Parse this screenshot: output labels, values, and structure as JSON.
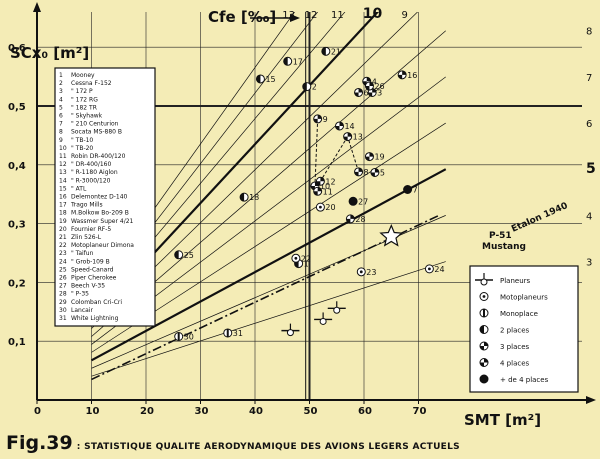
{
  "caption": {
    "figure": "Fig.39",
    "text": ": STATISTIQUE QUALITE AERODYNAMIQUE DES AVIONS LEGERS ACTUELS"
  },
  "chart_data": {
    "type": "scatter",
    "xlabel": "SMT [m²]",
    "ylabel": "SCx₀ [m²]",
    "toplabel": "Cfe [‰]",
    "xlim": [
      0,
      75
    ],
    "ylim": [
      0,
      0.65
    ],
    "x_ticks": [
      0,
      10,
      20,
      30,
      40,
      50,
      60,
      70
    ],
    "y_ticks": [
      0.1,
      0.2,
      0.3,
      0.4,
      0.5,
      0.6
    ],
    "y_tick_labels": [
      "0,1",
      "0,2",
      "0,3",
      "0,4",
      "0,5",
      "0,6"
    ],
    "cfe_lines": [
      {
        "cfe": 3,
        "label": "3"
      },
      {
        "cfe": 4,
        "label": "4"
      },
      {
        "cfe": 5,
        "label": "5",
        "bold": true
      },
      {
        "cfe": 6,
        "label": "6"
      },
      {
        "cfe": 7,
        "label": "7"
      },
      {
        "cfe": 8,
        "label": "8"
      },
      {
        "cfe": 9,
        "label": "9"
      },
      {
        "cfe": 10,
        "label": "10",
        "bold": true
      },
      {
        "cfe": 11,
        "label": "11"
      },
      {
        "cfe": 12,
        "label": "12"
      },
      {
        "cfe": 13,
        "label": "13"
      }
    ],
    "etalon_line": {
      "label": "Etalon 1940",
      "x": [
        10,
        74
      ],
      "y": [
        0.035,
        0.315
      ]
    },
    "mustang": {
      "label": "P-51",
      "sublabel": "Mustang",
      "x": 65,
      "y": 0.278
    },
    "numbered_list": [
      {
        "n": "1",
        "text": "Mooney"
      },
      {
        "n": "2",
        "text": "Cessna  F-152"
      },
      {
        "n": "3",
        "text": "\"       172 P"
      },
      {
        "n": "4",
        "text": "\"       172 RG"
      },
      {
        "n": "5",
        "text": "\"       182 TR"
      },
      {
        "n": "6",
        "text": "\"       Skyhawk"
      },
      {
        "n": "7",
        "text": "\"       210 Centurion"
      },
      {
        "n": "8",
        "text": "Socata  MS-880 B"
      },
      {
        "n": "9",
        "text": "\"       TB-10"
      },
      {
        "n": "10",
        "text": "\"       TB-20"
      },
      {
        "n": "11",
        "text": "Robin   DR-400/120"
      },
      {
        "n": "12",
        "text": "\"       DR-400/160"
      },
      {
        "n": "13",
        "text": "\"       R-1180 Aiglon"
      },
      {
        "n": "14",
        "text": "\"       R-3000/120"
      },
      {
        "n": "15",
        "text": "\"       ATL"
      },
      {
        "n": "16",
        "text": "Delemontez D-140"
      },
      {
        "n": "17",
        "text": "Trago Mills"
      },
      {
        "n": "18",
        "text": "M.Bolkow Bo-209 B"
      },
      {
        "n": "19",
        "text": "Wassmer Super 4/21"
      },
      {
        "n": "20",
        "text": "Fournier RF-5"
      },
      {
        "n": "21",
        "text": "Zlin 526-L"
      },
      {
        "n": "22",
        "text": "Motoplaneur Dimona"
      },
      {
        "n": "23",
        "text": "\"       Taifun"
      },
      {
        "n": "24",
        "text": "\"       Grob-109 B"
      },
      {
        "n": "25",
        "text": "Speed-Canard"
      },
      {
        "n": "26",
        "text": "Piper Cherokee"
      },
      {
        "n": "27",
        "text": "Beech   V-35"
      },
      {
        "n": "28",
        "text": "\"       P-35"
      },
      {
        "n": "29",
        "text": "Colomban Cri-Cri"
      },
      {
        "n": "30",
        "text": "Lancair"
      },
      {
        "n": "31",
        "text": "White Lightning"
      }
    ],
    "legend": [
      {
        "kind": "glider",
        "label": "Planeurs"
      },
      {
        "kind": "moto",
        "label": "Motoplaneurs"
      },
      {
        "kind": "mono",
        "label": "Monoplace"
      },
      {
        "kind": "p2",
        "label": "2 places"
      },
      {
        "kind": "p3",
        "label": "3 places"
      },
      {
        "kind": "p4",
        "label": "4 places"
      },
      {
        "kind": "p5",
        "label": "+ de 4 places"
      }
    ],
    "points": [
      {
        "id": "1",
        "x": 48,
        "y": 0.232,
        "kind": "p2",
        "label": "1"
      },
      {
        "id": "2",
        "x": 49.5,
        "y": 0.533,
        "kind": "p2",
        "label": "2"
      },
      {
        "id": "3",
        "x": 61.5,
        "y": 0.523,
        "kind": "p4",
        "label": "3"
      },
      {
        "id": "4",
        "x": 60.5,
        "y": 0.542,
        "kind": "p4",
        "label": "4"
      },
      {
        "id": "5",
        "x": 62,
        "y": 0.387,
        "kind": "p4",
        "label": "5"
      },
      {
        "id": "6",
        "x": 59,
        "y": 0.523,
        "kind": "p4",
        "label": "6"
      },
      {
        "id": "7",
        "x": 68,
        "y": 0.358,
        "kind": "p5",
        "label": "7"
      },
      {
        "id": "8",
        "x": 59,
        "y": 0.388,
        "kind": "p4",
        "label": "8"
      },
      {
        "id": "9",
        "x": 51.5,
        "y": 0.478,
        "kind": "p4",
        "label": "9"
      },
      {
        "id": "10",
        "x": 51,
        "y": 0.364,
        "kind": "p4",
        "label": "10"
      },
      {
        "id": "11",
        "x": 51.5,
        "y": 0.355,
        "kind": "p3",
        "label": "11"
      },
      {
        "id": "12",
        "x": 52,
        "y": 0.372,
        "kind": "p4",
        "label": "12"
      },
      {
        "id": "13",
        "x": 57,
        "y": 0.448,
        "kind": "p4",
        "label": "13"
      },
      {
        "id": "14",
        "x": 55.5,
        "y": 0.466,
        "kind": "p4",
        "label": "14"
      },
      {
        "id": "15",
        "x": 41,
        "y": 0.546,
        "kind": "p2",
        "label": "15"
      },
      {
        "id": "16",
        "x": 67,
        "y": 0.553,
        "kind": "p4",
        "label": "16"
      },
      {
        "id": "17",
        "x": 46,
        "y": 0.576,
        "kind": "p2",
        "label": "17"
      },
      {
        "id": "18",
        "x": 38,
        "y": 0.345,
        "kind": "p2",
        "label": "18"
      },
      {
        "id": "19",
        "x": 61,
        "y": 0.414,
        "kind": "p4",
        "label": "19"
      },
      {
        "id": "20",
        "x": 52,
        "y": 0.328,
        "kind": "moto",
        "label": "20"
      },
      {
        "id": "21",
        "x": 53,
        "y": 0.593,
        "kind": "p2",
        "label": "21"
      },
      {
        "id": "22",
        "x": 47.5,
        "y": 0.241,
        "kind": "moto",
        "label": "22"
      },
      {
        "id": "23",
        "x": 59.5,
        "y": 0.218,
        "kind": "moto",
        "label": "23"
      },
      {
        "id": "24",
        "x": 72,
        "y": 0.223,
        "kind": "moto",
        "label": "24"
      },
      {
        "id": "25",
        "x": 26,
        "y": 0.247,
        "kind": "p2",
        "label": "25"
      },
      {
        "id": "26",
        "x": 61,
        "y": 0.534,
        "kind": "p4",
        "label": "26"
      },
      {
        "id": "27",
        "x": 58,
        "y": 0.338,
        "kind": "p5",
        "label": "27"
      },
      {
        "id": "28",
        "x": 57.5,
        "y": 0.308,
        "kind": "p4",
        "label": "28"
      },
      {
        "id": "29",
        "x": 9.5,
        "y": 0.141,
        "kind": "mono",
        "label": "29"
      },
      {
        "id": "30",
        "x": 26,
        "y": 0.108,
        "kind": "mono",
        "label": "30"
      },
      {
        "id": "31",
        "x": 35,
        "y": 0.114,
        "kind": "mono",
        "label": "31"
      },
      {
        "id": "g1",
        "x": 46.5,
        "y": 0.118,
        "kind": "glider",
        "label": ""
      },
      {
        "id": "g2",
        "x": 52.5,
        "y": 0.137,
        "kind": "glider",
        "label": ""
      },
      {
        "id": "g3",
        "x": 55,
        "y": 0.156,
        "kind": "glider",
        "label": ""
      }
    ],
    "connect_pairs": [
      [
        "9",
        "10"
      ],
      [
        "13",
        "12"
      ],
      [
        "8",
        "13"
      ]
    ]
  }
}
